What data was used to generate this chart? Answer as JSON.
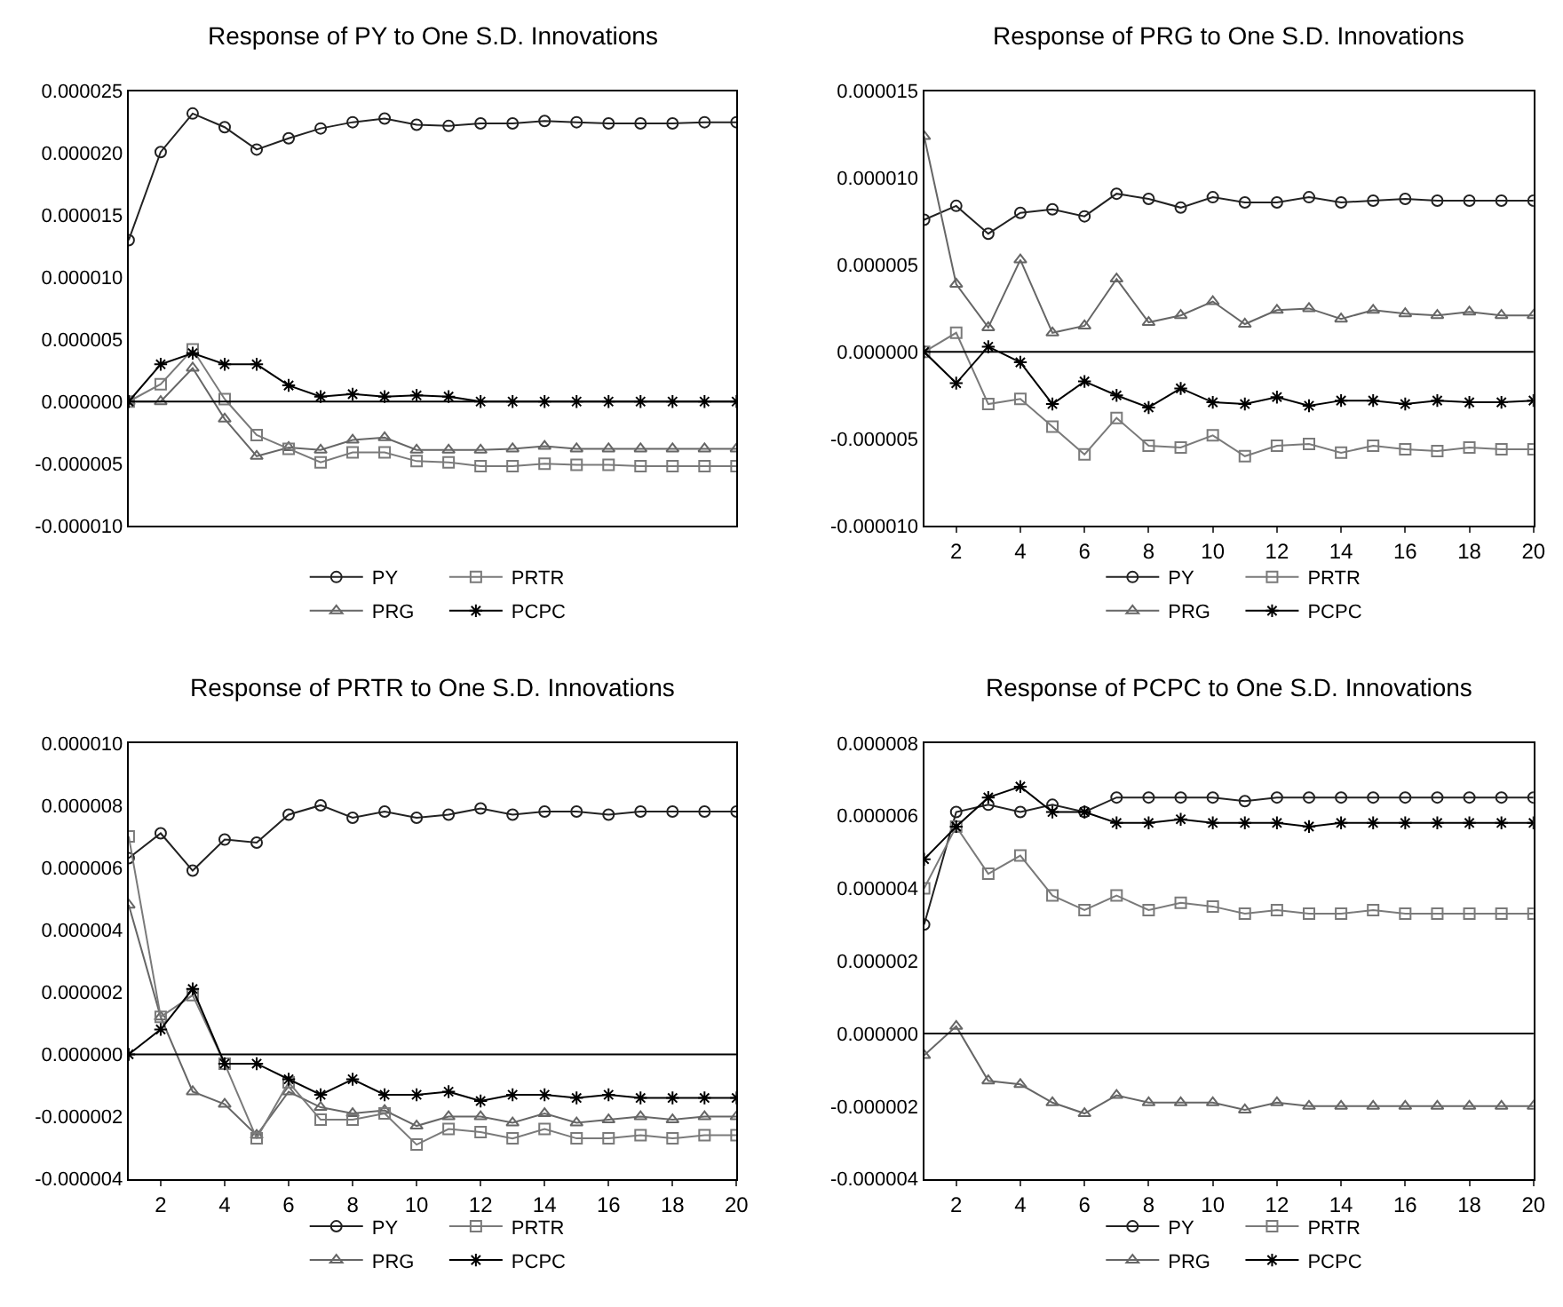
{
  "chart_data": [
    {
      "type": "line",
      "title": "Response of PY to One S.D. Innovations",
      "x": [
        1,
        2,
        3,
        4,
        5,
        6,
        7,
        8,
        9,
        10,
        11,
        12,
        13,
        14,
        15,
        16,
        17,
        18,
        19,
        20
      ],
      "xlim": [
        1,
        20
      ],
      "xticks": [
        2,
        4,
        6,
        8,
        10,
        12,
        14,
        16,
        18,
        20
      ],
      "tick_labels": "y",
      "ylim": [
        -1e-05,
        2.5e-05
      ],
      "yticks": [
        {
          "value": -1e-05,
          "label": "-0.000010"
        },
        {
          "value": -5e-06,
          "label": "-0.000005"
        },
        {
          "value": 0,
          "label": "0.000000"
        },
        {
          "value": 5e-06,
          "label": "0.000005"
        },
        {
          "value": 1e-05,
          "label": "0.000010"
        },
        {
          "value": 1.5e-05,
          "label": "0.000015"
        },
        {
          "value": 2e-05,
          "label": "0.000020"
        },
        {
          "value": 2.5e-05,
          "label": "0.000025"
        }
      ],
      "ref_lines": [
        {
          "axis": "y",
          "value": 0,
          "color": "#000000"
        }
      ],
      "grid": false,
      "legend": "bottom",
      "series": [
        {
          "name": "PY",
          "color": "#222222",
          "marker": "circle",
          "values": [
            1.3e-05,
            2.01e-05,
            2.32e-05,
            2.21e-05,
            2.03e-05,
            2.12e-05,
            2.2e-05,
            2.25e-05,
            2.28e-05,
            2.23e-05,
            2.22e-05,
            2.24e-05,
            2.24e-05,
            2.26e-05,
            2.25e-05,
            2.24e-05,
            2.24e-05,
            2.24e-05,
            2.25e-05,
            2.25e-05
          ]
        },
        {
          "name": "PRG",
          "color": "#666666",
          "marker": "triangle",
          "values": [
            0,
            0,
            2.7e-06,
            -1.4e-06,
            -4.4e-06,
            -3.7e-06,
            -3.9e-06,
            -3.1e-06,
            -2.9e-06,
            -3.9e-06,
            -3.9e-06,
            -3.9e-06,
            -3.8e-06,
            -3.6e-06,
            -3.8e-06,
            -3.8e-06,
            -3.8e-06,
            -3.8e-06,
            -3.8e-06,
            -3.8e-06
          ]
        },
        {
          "name": "PRTR",
          "color": "#7a7a7a",
          "marker": "square",
          "values": [
            0,
            1.4e-06,
            4.2e-06,
            2e-07,
            -2.7e-06,
            -3.8e-06,
            -4.9e-06,
            -4.1e-06,
            -4.1e-06,
            -4.8e-06,
            -4.9e-06,
            -5.2e-06,
            -5.2e-06,
            -5e-06,
            -5.1e-06,
            -5.1e-06,
            -5.2e-06,
            -5.2e-06,
            -5.2e-06,
            -5.2e-06
          ]
        },
        {
          "name": "PCPC",
          "color": "#000000",
          "marker": "cross",
          "values": [
            0,
            3e-06,
            3.9e-06,
            3e-06,
            3e-06,
            1.3e-06,
            4e-07,
            6e-07,
            4e-07,
            5e-07,
            4e-07,
            0,
            0,
            0,
            0,
            0,
            0,
            0,
            0,
            0
          ]
        }
      ]
    },
    {
      "type": "line",
      "title": "Response of PRG to One S.D. Innovations",
      "x": [
        1,
        2,
        3,
        4,
        5,
        6,
        7,
        8,
        9,
        10,
        11,
        12,
        13,
        14,
        15,
        16,
        17,
        18,
        19,
        20
      ],
      "xlim": [
        1,
        20
      ],
      "xticks": [
        2,
        4,
        6,
        8,
        10,
        12,
        14,
        16,
        18,
        20
      ],
      "ylim": [
        -1e-05,
        1.5e-05
      ],
      "yticks": [
        {
          "value": -1e-05,
          "label": "-0.000010"
        },
        {
          "value": -5e-06,
          "label": "-0.000005"
        },
        {
          "value": 0,
          "label": "0.000000"
        },
        {
          "value": 5e-06,
          "label": "0.000005"
        },
        {
          "value": 1e-05,
          "label": "0.000010"
        },
        {
          "value": 1.5e-05,
          "label": "0.000015"
        }
      ],
      "ref_lines": [
        {
          "axis": "y",
          "value": 0,
          "color": "#000000"
        }
      ],
      "grid": false,
      "legend": "bottom",
      "series": [
        {
          "name": "PY",
          "color": "#222222",
          "marker": "circle",
          "values": [
            7.6e-06,
            8.4e-06,
            6.8e-06,
            8e-06,
            8.2e-06,
            7.8e-06,
            9.1e-06,
            8.8e-06,
            8.3e-06,
            8.9e-06,
            8.6e-06,
            8.6e-06,
            8.9e-06,
            8.6e-06,
            8.7e-06,
            8.8e-06,
            8.7e-06,
            8.7e-06,
            8.7e-06,
            8.7e-06
          ]
        },
        {
          "name": "PRG",
          "color": "#666666",
          "marker": "triangle",
          "values": [
            1.24e-05,
            3.9e-06,
            1.4e-06,
            5.3e-06,
            1.1e-06,
            1.5e-06,
            4.2e-06,
            1.7e-06,
            2.1e-06,
            2.9e-06,
            1.6e-06,
            2.4e-06,
            2.5e-06,
            1.9e-06,
            2.4e-06,
            2.2e-06,
            2.1e-06,
            2.3e-06,
            2.1e-06,
            2.1e-06
          ]
        },
        {
          "name": "PRTR",
          "color": "#7a7a7a",
          "marker": "square",
          "values": [
            0,
            1.1e-06,
            -3e-06,
            -2.7e-06,
            -4.3e-06,
            -5.9e-06,
            -3.8e-06,
            -5.4e-06,
            -5.5e-06,
            -4.8e-06,
            -6e-06,
            -5.4e-06,
            -5.3e-06,
            -5.8e-06,
            -5.4e-06,
            -5.6e-06,
            -5.7e-06,
            -5.5e-06,
            -5.6e-06,
            -5.6e-06
          ]
        },
        {
          "name": "PCPC",
          "color": "#000000",
          "marker": "cross",
          "values": [
            0,
            -1.8e-06,
            3e-07,
            -6e-07,
            -3e-06,
            -1.7e-06,
            -2.5e-06,
            -3.2e-06,
            -2.1e-06,
            -2.9e-06,
            -3e-06,
            -2.6e-06,
            -3.1e-06,
            -2.8e-06,
            -2.8e-06,
            -3e-06,
            -2.8e-06,
            -2.9e-06,
            -2.9e-06,
            -2.8e-06
          ]
        }
      ]
    },
    {
      "type": "line",
      "title": "Response of PRTR to One S.D. Innovations",
      "x": [
        1,
        2,
        3,
        4,
        5,
        6,
        7,
        8,
        9,
        10,
        11,
        12,
        13,
        14,
        15,
        16,
        17,
        18,
        19,
        20
      ],
      "xlim": [
        1,
        20
      ],
      "xticks": [
        2,
        4,
        6,
        8,
        10,
        12,
        14,
        16,
        18,
        20
      ],
      "ylim": [
        -4e-06,
        1e-05
      ],
      "yticks": [
        {
          "value": -4e-06,
          "label": "-0.000004"
        },
        {
          "value": -2e-06,
          "label": "-0.000002"
        },
        {
          "value": 0,
          "label": "0.000000"
        },
        {
          "value": 2e-06,
          "label": "0.000002"
        },
        {
          "value": 4e-06,
          "label": "0.000004"
        },
        {
          "value": 6e-06,
          "label": "0.000006"
        },
        {
          "value": 8e-06,
          "label": "0.000008"
        },
        {
          "value": 1e-05,
          "label": "0.000010"
        }
      ],
      "ref_lines": [
        {
          "axis": "y",
          "value": 0,
          "color": "#000000"
        }
      ],
      "grid": false,
      "legend": "bottom",
      "series": [
        {
          "name": "PY",
          "color": "#222222",
          "marker": "circle",
          "values": [
            6.3e-06,
            7.1e-06,
            5.9e-06,
            6.9e-06,
            6.8e-06,
            7.7e-06,
            8e-06,
            7.6e-06,
            7.8e-06,
            7.6e-06,
            7.7e-06,
            7.9e-06,
            7.7e-06,
            7.8e-06,
            7.8e-06,
            7.7e-06,
            7.8e-06,
            7.8e-06,
            7.8e-06,
            7.8e-06
          ]
        },
        {
          "name": "PRG",
          "color": "#666666",
          "marker": "triangle",
          "values": [
            4.8e-06,
            1.2e-06,
            -1.2e-06,
            -1.6e-06,
            -2.6e-06,
            -1.2e-06,
            -1.7e-06,
            -1.9e-06,
            -1.8e-06,
            -2.3e-06,
            -2e-06,
            -2e-06,
            -2.2e-06,
            -1.9e-06,
            -2.2e-06,
            -2.1e-06,
            -2e-06,
            -2.1e-06,
            -2e-06,
            -2e-06
          ]
        },
        {
          "name": "PRTR",
          "color": "#7a7a7a",
          "marker": "square",
          "values": [
            7e-06,
            1.2e-06,
            1.9e-06,
            -3e-07,
            -2.7e-06,
            -9e-07,
            -2.1e-06,
            -2.1e-06,
            -1.9e-06,
            -2.9e-06,
            -2.4e-06,
            -2.5e-06,
            -2.7e-06,
            -2.4e-06,
            -2.7e-06,
            -2.7e-06,
            -2.6e-06,
            -2.7e-06,
            -2.6e-06,
            -2.6e-06
          ]
        },
        {
          "name": "PCPC",
          "color": "#000000",
          "marker": "cross",
          "values": [
            0,
            8e-07,
            2.1e-06,
            -3e-07,
            -3e-07,
            -8e-07,
            -1.3e-06,
            -8e-07,
            -1.3e-06,
            -1.3e-06,
            -1.2e-06,
            -1.5e-06,
            -1.3e-06,
            -1.3e-06,
            -1.4e-06,
            -1.3e-06,
            -1.4e-06,
            -1.4e-06,
            -1.4e-06,
            -1.4e-06
          ]
        }
      ]
    },
    {
      "type": "line",
      "title": "Response of PCPC to One S.D. Innovations",
      "x": [
        1,
        2,
        3,
        4,
        5,
        6,
        7,
        8,
        9,
        10,
        11,
        12,
        13,
        14,
        15,
        16,
        17,
        18,
        19,
        20
      ],
      "xlim": [
        1,
        20
      ],
      "xticks": [
        2,
        4,
        6,
        8,
        10,
        12,
        14,
        16,
        18,
        20
      ],
      "ylim": [
        -4e-06,
        8e-06
      ],
      "yticks": [
        {
          "value": -4e-06,
          "label": "-0.000004"
        },
        {
          "value": -2e-06,
          "label": "-0.000002"
        },
        {
          "value": 0,
          "label": "0.000000"
        },
        {
          "value": 2e-06,
          "label": "0.000002"
        },
        {
          "value": 4e-06,
          "label": "0.000004"
        },
        {
          "value": 6e-06,
          "label": "0.000006"
        },
        {
          "value": 8e-06,
          "label": "0.000008"
        }
      ],
      "ref_lines": [
        {
          "axis": "y",
          "value": 0,
          "color": "#000000"
        }
      ],
      "grid": false,
      "legend": "bottom",
      "series": [
        {
          "name": "PY",
          "color": "#222222",
          "marker": "circle",
          "values": [
            3e-06,
            6.1e-06,
            6.3e-06,
            6.1e-06,
            6.3e-06,
            6.1e-06,
            6.5e-06,
            6.5e-06,
            6.5e-06,
            6.5e-06,
            6.4e-06,
            6.5e-06,
            6.5e-06,
            6.5e-06,
            6.5e-06,
            6.5e-06,
            6.5e-06,
            6.5e-06,
            6.5e-06,
            6.5e-06
          ]
        },
        {
          "name": "PRG",
          "color": "#666666",
          "marker": "triangle",
          "values": [
            -6e-07,
            2e-07,
            -1.3e-06,
            -1.4e-06,
            -1.9e-06,
            -2.2e-06,
            -1.7e-06,
            -1.9e-06,
            -1.9e-06,
            -1.9e-06,
            -2.1e-06,
            -1.9e-06,
            -2e-06,
            -2e-06,
            -2e-06,
            -2e-06,
            -2e-06,
            -2e-06,
            -2e-06,
            -2e-06
          ]
        },
        {
          "name": "PRTR",
          "color": "#7a7a7a",
          "marker": "square",
          "values": [
            4e-06,
            5.7e-06,
            4.4e-06,
            4.9e-06,
            3.8e-06,
            3.4e-06,
            3.8e-06,
            3.4e-06,
            3.6e-06,
            3.5e-06,
            3.3e-06,
            3.4e-06,
            3.3e-06,
            3.3e-06,
            3.4e-06,
            3.3e-06,
            3.3e-06,
            3.3e-06,
            3.3e-06,
            3.3e-06
          ]
        },
        {
          "name": "PCPC",
          "color": "#000000",
          "marker": "cross",
          "values": [
            4.8e-06,
            5.7e-06,
            6.5e-06,
            6.8e-06,
            6.1e-06,
            6.1e-06,
            5.8e-06,
            5.8e-06,
            5.9e-06,
            5.8e-06,
            5.8e-06,
            5.8e-06,
            5.7e-06,
            5.8e-06,
            5.8e-06,
            5.8e-06,
            5.8e-06,
            5.8e-06,
            5.8e-06,
            5.8e-06
          ]
        }
      ]
    }
  ]
}
